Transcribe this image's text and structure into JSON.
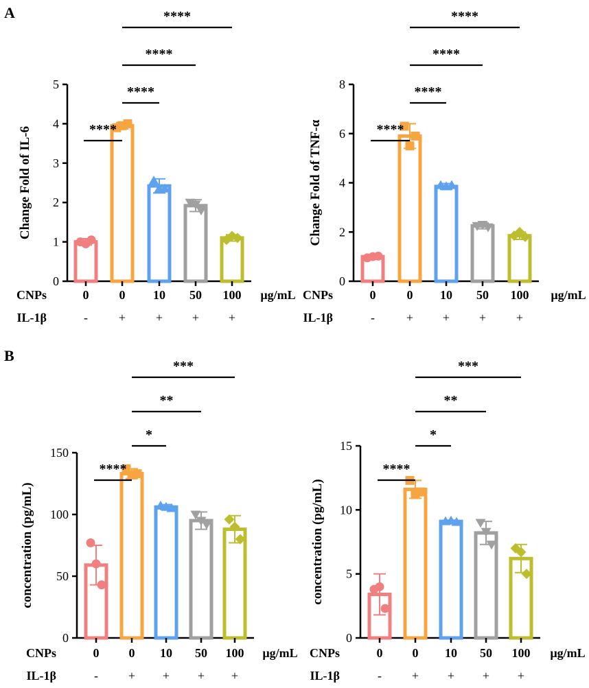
{
  "figure": {
    "panel_labels": [
      "A",
      "B"
    ],
    "units": "µg/mL",
    "cnps_label": "CNPs",
    "il_label": "IL-1β"
  },
  "chart_data": [
    {
      "type": "bar",
      "panel": "A",
      "title": "",
      "ylabel": "Change Fold of IL-6",
      "ylim": [
        0,
        5
      ],
      "yticks": [
        "0",
        "1",
        "2",
        "3",
        "4",
        "5"
      ],
      "categories": [
        "0",
        "0",
        "10",
        "50",
        "100"
      ],
      "il1b": [
        "-",
        "+",
        "+",
        "+",
        "+"
      ],
      "values": [
        1.0,
        3.95,
        2.42,
        1.92,
        1.1
      ],
      "errors": [
        0.08,
        0.08,
        0.18,
        0.15,
        0.08
      ],
      "points": [
        [
          1.0,
          0.95,
          1.05
        ],
        [
          3.9,
          3.95,
          4.0
        ],
        [
          2.55,
          2.35,
          2.35
        ],
        [
          2.0,
          1.95,
          1.8
        ],
        [
          1.05,
          1.15,
          1.1
        ]
      ],
      "markers": [
        "circle",
        "square",
        "triangle-up",
        "triangle-down",
        "diamond"
      ],
      "colors": [
        "#F08080",
        "#F7A541",
        "#5EA2EE",
        "#A0A0A0",
        "#BDBE2E"
      ],
      "significance": [
        {
          "label": "****",
          "from": 0,
          "to": 1
        },
        {
          "label": "****",
          "from": 1,
          "to": 2
        },
        {
          "label": "****",
          "from": 1,
          "to": 3
        },
        {
          "label": "****",
          "from": 1,
          "to": 4
        }
      ]
    },
    {
      "type": "bar",
      "panel": "A",
      "title": "",
      "ylabel": "Change Fold of TNF-α",
      "ylim": [
        0,
        8
      ],
      "yticks": [
        "0",
        "2",
        "4",
        "6",
        "8"
      ],
      "categories": [
        "0",
        "0",
        "10",
        "50",
        "100"
      ],
      "il1b": [
        "-",
        "+",
        "+",
        "+",
        "+"
      ],
      "values": [
        1.0,
        5.9,
        3.85,
        2.25,
        1.85
      ],
      "errors": [
        0.05,
        0.5,
        0.12,
        0.12,
        0.15
      ],
      "points": [
        [
          0.95,
          1.0,
          1.02
        ],
        [
          6.3,
          5.5,
          5.9
        ],
        [
          3.9,
          3.85,
          3.9
        ],
        [
          2.25,
          2.3,
          2.2
        ],
        [
          1.85,
          2.0,
          1.8
        ]
      ],
      "markers": [
        "circle",
        "square",
        "triangle-up",
        "triangle-down",
        "diamond"
      ],
      "colors": [
        "#F08080",
        "#F7A541",
        "#5EA2EE",
        "#A0A0A0",
        "#BDBE2E"
      ],
      "significance": [
        {
          "label": "****",
          "from": 0,
          "to": 1
        },
        {
          "label": "****",
          "from": 1,
          "to": 2
        },
        {
          "label": "****",
          "from": 1,
          "to": 3
        },
        {
          "label": "****",
          "from": 1,
          "to": 4
        }
      ]
    },
    {
      "type": "bar",
      "panel": "B",
      "title": "",
      "ylabel": "concentration (pg/mL)",
      "ylim": [
        0,
        150
      ],
      "yticks": [
        "0",
        "50",
        "100",
        "150"
      ],
      "categories": [
        "0",
        "0",
        "10",
        "50",
        "100"
      ],
      "il1b": [
        "-",
        "+",
        "+",
        "+",
        "+"
      ],
      "values": [
        59,
        133,
        106,
        95,
        88
      ],
      "errors": [
        16,
        4,
        2,
        7,
        11
      ],
      "points": [
        [
          77,
          60,
          43
        ],
        [
          137,
          132,
          133
        ],
        [
          107,
          106,
          105
        ],
        [
          100,
          95,
          92
        ],
        [
          96,
          90,
          80
        ]
      ],
      "markers": [
        "circle",
        "square",
        "triangle-up",
        "triangle-down",
        "diamond"
      ],
      "colors": [
        "#F08080",
        "#F7A541",
        "#5EA2EE",
        "#A0A0A0",
        "#BDBE2E"
      ],
      "significance": [
        {
          "label": "****",
          "from": 0,
          "to": 1
        },
        {
          "label": "*",
          "from": 1,
          "to": 2
        },
        {
          "label": "**",
          "from": 1,
          "to": 3
        },
        {
          "label": "***",
          "from": 1,
          "to": 4
        }
      ]
    },
    {
      "type": "bar",
      "panel": "B",
      "title": "",
      "ylabel": "concentration (pg/mL)",
      "ylim": [
        0,
        15
      ],
      "yticks": [
        "0",
        "5",
        "10",
        "15"
      ],
      "categories": [
        "0",
        "0",
        "10",
        "50",
        "100"
      ],
      "il1b": [
        "-",
        "+",
        "+",
        "+",
        "+"
      ],
      "values": [
        3.4,
        11.6,
        9.1,
        8.2,
        6.2
      ],
      "errors": [
        1.6,
        0.7,
        0.1,
        0.9,
        1.1
      ],
      "points": [
        [
          3.8,
          4.0,
          2.3
        ],
        [
          12.3,
          11.2,
          11.4
        ],
        [
          9.1,
          9.15,
          9.05
        ],
        [
          9.0,
          8.3,
          7.3
        ],
        [
          7.0,
          6.7,
          5.0
        ]
      ],
      "markers": [
        "circle",
        "square",
        "triangle-up",
        "triangle-down",
        "diamond"
      ],
      "colors": [
        "#F08080",
        "#F7A541",
        "#5EA2EE",
        "#A0A0A0",
        "#BDBE2E"
      ],
      "significance": [
        {
          "label": "****",
          "from": 0,
          "to": 1
        },
        {
          "label": "*",
          "from": 1,
          "to": 2
        },
        {
          "label": "**",
          "from": 1,
          "to": 3
        },
        {
          "label": "***",
          "from": 1,
          "to": 4
        }
      ]
    }
  ]
}
